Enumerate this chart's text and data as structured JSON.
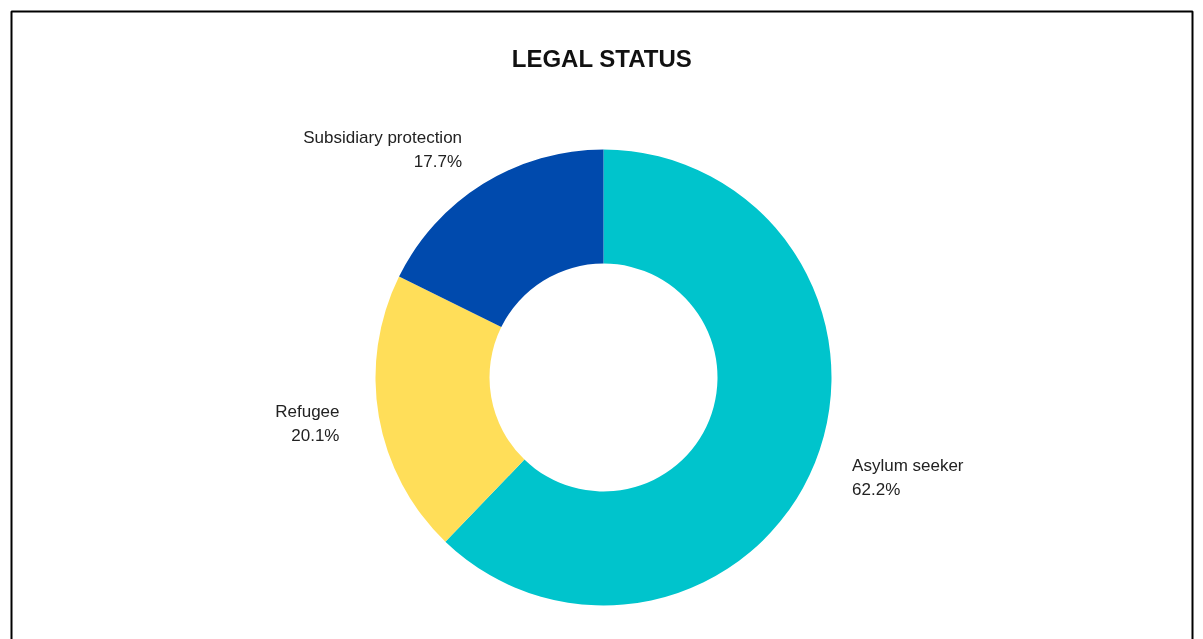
{
  "chart_data": {
    "type": "donut",
    "title": "LEGAL STATUS",
    "categories": [
      "Asylum seeker",
      "Refugee",
      "Subsidiary protection"
    ],
    "values": [
      62.2,
      20.1,
      17.7
    ],
    "colors": [
      "#00c4cc",
      "#ffde59",
      "#004aad"
    ],
    "value_labels": [
      "62.2%",
      "20.1%",
      "17.7%"
    ]
  }
}
